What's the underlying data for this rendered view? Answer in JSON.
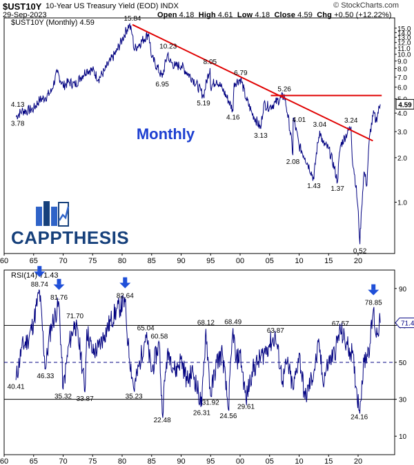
{
  "header": {
    "symbol": "$UST10Y",
    "name": "10-Year US Treasury Yield (EOD)",
    "exchange": "INDX",
    "credit": "© StockCharts.com",
    "date": "29-Sep-2023",
    "open_label": "Open",
    "open": "4.18",
    "high_label": "High",
    "high": "4.61",
    "low_label": "Low",
    "low": "4.18",
    "close_label": "Close",
    "close": "4.59",
    "chg_label": "Chg",
    "chg": "+0.50 (+12.22%)"
  },
  "logo": {
    "text": "CAPPTHESIS",
    "brand_color": "#16407b"
  },
  "colors": {
    "price_line": "#000080",
    "trendline": "#e00000",
    "arrow": "#1f4fd8",
    "monthly_label": "#1d3fd1"
  },
  "chart_data": [
    {
      "type": "line",
      "panel": "price",
      "legend": "$UST10Y (Monthly) 4.59",
      "annotation": "Monthly",
      "scale": "log",
      "x_ticks": [
        "60",
        "65",
        "70",
        "75",
        "80",
        "85",
        "90",
        "95",
        "00",
        "05",
        "10",
        "15",
        "20"
      ],
      "y_ticks": [
        "1.0",
        "2.0",
        "3.0",
        "4.0",
        "5.0",
        "6.0",
        "7.0",
        "8.0",
        "9.0",
        "10.0",
        "11.0",
        "12.0",
        "13.0",
        "14.0",
        "15.0"
      ],
      "last_value_label": "4.59",
      "ylim": [
        0.45,
        16.5
      ],
      "series": [
        {
          "x": [
            1962,
            1963,
            1964,
            1965,
            1966,
            1967,
            1968,
            1969,
            1970,
            1971,
            1972,
            1973,
            1974,
            1975,
            1976,
            1977,
            1978,
            1979,
            1980,
            1981.2,
            1981.75,
            1982,
            1983,
            1984.5,
            1985,
            1986.8,
            1987.8,
            1988,
            1989,
            1990,
            1991,
            1992,
            1993.8,
            1994.9,
            1995,
            1996,
            1997,
            1998.8,
            1999,
            2000.1,
            2001,
            2002,
            2003.5,
            2004,
            2005,
            2006,
            2007.5,
            2008,
            2008.95,
            2009,
            2010,
            2011,
            2012.5,
            2013.5,
            2014,
            2015,
            2016.5,
            2017,
            2018.8,
            2019,
            2020.3,
            2020.6,
            2021,
            2021.5,
            2022,
            2022.7,
            2023,
            2023.75
          ],
          "values": [
            3.78,
            4.13,
            4.16,
            4.28,
            4.9,
            5.1,
            5.6,
            7.5,
            6.1,
            6.5,
            6.2,
            7.0,
            7.8,
            7.8,
            6.8,
            7.7,
            9.0,
            10.3,
            12.5,
            15.84,
            13.5,
            10.8,
            11.8,
            13.8,
            9.5,
            6.95,
            10.23,
            9.0,
            8.3,
            8.4,
            7.5,
            6.8,
            5.19,
            8.05,
            6.0,
            6.7,
            5.8,
            4.16,
            6.4,
            6.79,
            5.0,
            4.0,
            3.13,
            4.6,
            4.4,
            4.7,
            5.26,
            4.01,
            2.08,
            3.7,
            2.4,
            2.0,
            1.43,
            3.04,
            2.5,
            2.3,
            1.37,
            2.4,
            3.24,
            2.0,
            0.52,
            0.9,
            1.6,
            1.3,
            2.9,
            4.01,
            3.5,
            4.59
          ]
        }
      ],
      "trendlines": [
        {
          "x": [
            1981.75,
            2022.5
          ],
          "values": [
            15.84,
            2.6
          ],
          "label": "down"
        },
        {
          "x": [
            2005.2,
            2024.0
          ],
          "values": [
            5.26,
            5.26
          ],
          "label": "resistance"
        }
      ],
      "annotations": [
        {
          "text": "15.84",
          "x": 1981.75,
          "y": 15.84
        },
        {
          "text": "10.23",
          "x": 1987.8,
          "y": 10.23
        },
        {
          "text": "8.05",
          "x": 1994.9,
          "y": 8.05
        },
        {
          "text": "6.79",
          "x": 2000.1,
          "y": 6.79
        },
        {
          "text": "5.26",
          "x": 2007.5,
          "y": 5.26
        },
        {
          "text": "6.95",
          "x": 1986.8,
          "y": 6.95
        },
        {
          "text": "5.19",
          "x": 1993.8,
          "y": 5.19
        },
        {
          "text": "4.16",
          "x": 1998.8,
          "y": 4.16
        },
        {
          "text": "4.01",
          "x": 2010,
          "y": 4.01
        },
        {
          "text": "3.13",
          "x": 2003.5,
          "y": 3.13
        },
        {
          "text": "3.04",
          "x": 2013.5,
          "y": 3.04
        },
        {
          "text": "3.24",
          "x": 2018.8,
          "y": 3.24
        },
        {
          "text": "2.08",
          "x": 2008.95,
          "y": 2.08
        },
        {
          "text": "1.43",
          "x": 2012.5,
          "y": 1.43
        },
        {
          "text": "1.37",
          "x": 2016.5,
          "y": 1.37
        },
        {
          "text": "0.52",
          "x": 2020.3,
          "y": 0.52
        },
        {
          "text": "4.13",
          "x": 1962.3,
          "y": 4.13
        },
        {
          "text": "3.78",
          "x": 1962.3,
          "y": 3.78
        }
      ]
    },
    {
      "type": "line",
      "panel": "rsi",
      "legend": "RSI(14) 71.43",
      "last_value_label": "71.43",
      "x_ticks": [
        "60",
        "65",
        "70",
        "75",
        "80",
        "85",
        "90",
        "95",
        "00",
        "05",
        "10",
        "15",
        "20"
      ],
      "y_ticks": [
        "10",
        "30",
        "50",
        "70",
        "90"
      ],
      "reference_lines": [
        70,
        50,
        30
      ],
      "ylim": [
        0,
        100
      ],
      "series": [
        {
          "x": [
            1962,
            1963,
            1964,
            1965,
            1966,
            1967,
            1967.5,
            1968,
            1969.3,
            1970,
            1971,
            1972,
            1973,
            1973.7,
            1974,
            1975,
            1976,
            1977,
            1978,
            1979,
            1980.5,
            1981,
            1982,
            1983,
            1984,
            1985,
            1986.3,
            1986.8,
            1987.5,
            1988,
            1989,
            1990,
            1991,
            1992,
            1993.5,
            1994.2,
            1995,
            1996,
            1997,
            1998,
            1998.8,
            1999.3,
            2000,
            2001,
            2002,
            2003,
            2004,
            2005,
            2006,
            2007.2,
            2008,
            2009,
            2010,
            2011,
            2012.5,
            2013.4,
            2014,
            2015,
            2016,
            2017,
            2018,
            2019,
            2020.2,
            2021,
            2022,
            2022.6,
            2023,
            2023.75
          ],
          "values": [
            40.41,
            58,
            62,
            72,
            88.74,
            46.33,
            60,
            70,
            81.76,
            35.32,
            60,
            71.7,
            55,
            33.87,
            68,
            55,
            58,
            65,
            72,
            78,
            82.64,
            60,
            35.23,
            50,
            65.04,
            45,
            60.58,
            22.48,
            50,
            55,
            45,
            52,
            40,
            45,
            26.31,
            68.12,
            31.92,
            50,
            55,
            24.56,
            68.49,
            50,
            55,
            29.61,
            45,
            50,
            55,
            60,
            63.87,
            40,
            50,
            35,
            55,
            30,
            45,
            60,
            40,
            50,
            55,
            67.57,
            60,
            55,
            24.16,
            50,
            60,
            78.85,
            65,
            71.43
          ]
        }
      ],
      "annotations": [
        {
          "text": "88.74",
          "x": 1966,
          "y": 88.74
        },
        {
          "text": "81.76",
          "x": 1969.3,
          "y": 81.76
        },
        {
          "text": "82.64",
          "x": 1980.5,
          "y": 82.64
        },
        {
          "text": "78.85",
          "x": 2022.6,
          "y": 78.85
        },
        {
          "text": "71.70",
          "x": 1972,
          "y": 71.7
        },
        {
          "text": "65.04",
          "x": 1984,
          "y": 65.04
        },
        {
          "text": "60.58",
          "x": 1986.3,
          "y": 60.58
        },
        {
          "text": "68.12",
          "x": 1994.2,
          "y": 68.12
        },
        {
          "text": "68.49",
          "x": 1998.8,
          "y": 68.49
        },
        {
          "text": "63.87",
          "x": 2006,
          "y": 63.87
        },
        {
          "text": "67.57",
          "x": 2017,
          "y": 67.57
        },
        {
          "text": "40.41",
          "x": 1962,
          "y": 40.41
        },
        {
          "text": "46.33",
          "x": 1967,
          "y": 46.33
        },
        {
          "text": "35.32",
          "x": 1970,
          "y": 35.32
        },
        {
          "text": "33.87",
          "x": 1973.7,
          "y": 33.87
        },
        {
          "text": "35.23",
          "x": 1982,
          "y": 35.23
        },
        {
          "text": "22.48",
          "x": 1986.8,
          "y": 22.48
        },
        {
          "text": "26.31",
          "x": 1993.5,
          "y": 26.31
        },
        {
          "text": "31.92",
          "x": 1995,
          "y": 31.92
        },
        {
          "text": "24.56",
          "x": 1998,
          "y": 24.56
        },
        {
          "text": "29.61",
          "x": 2001,
          "y": 29.61
        },
        {
          "text": "24.16",
          "x": 2020.2,
          "y": 24.16
        }
      ],
      "arrows_at": [
        1966,
        1969.3,
        1980.5,
        2022.6
      ]
    }
  ]
}
